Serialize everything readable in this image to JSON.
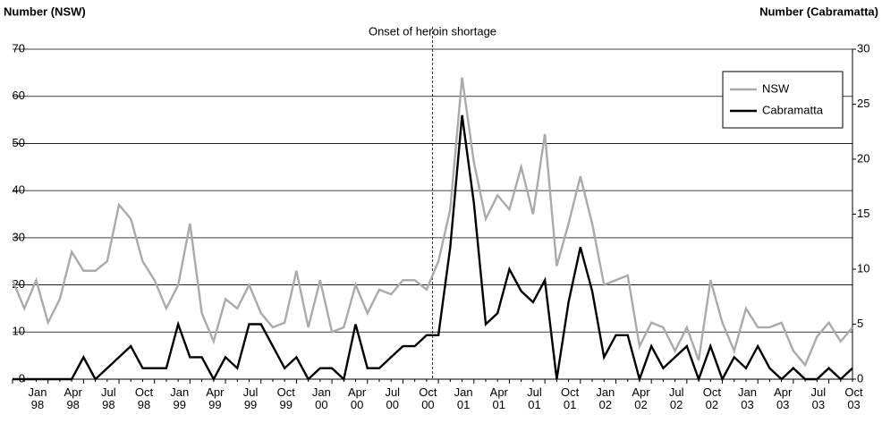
{
  "chart_data": {
    "type": "line",
    "y_label": "Number (NSW)",
    "y2_label": "Number (Cabramatta)",
    "annotation": "Onset of heroin shortage",
    "categories": [
      "Jan 98",
      null,
      null,
      "Apr 98",
      null,
      null,
      "Jul 98",
      null,
      null,
      "Oct 98",
      null,
      null,
      "Jan 99",
      null,
      null,
      "Apr 99",
      null,
      null,
      "Jul 99",
      null,
      null,
      "Oct 99",
      null,
      null,
      "Jan 00",
      null,
      null,
      "Apr 00",
      null,
      null,
      "Jul 00",
      null,
      null,
      "Oct 00",
      null,
      null,
      "Jan 01",
      null,
      null,
      "Apr 01",
      null,
      null,
      "Jul 01",
      null,
      null,
      "Oct 01",
      null,
      null,
      "Jan 02",
      null,
      null,
      "Apr 02",
      null,
      null,
      "Jul 02",
      null,
      null,
      "Oct 02",
      null,
      null,
      "Jan 03",
      null,
      null,
      "Apr 03",
      null,
      null,
      "Jul 03",
      null,
      null,
      "Oct 03",
      null,
      null
    ],
    "series": [
      {
        "name": "NSW",
        "color": "#aaaaaa",
        "values": [
          21,
          15,
          21,
          12,
          17,
          27,
          23,
          23,
          25,
          37,
          34,
          25,
          21,
          15,
          20,
          33,
          14,
          8,
          17,
          15,
          20,
          14,
          11,
          12,
          23,
          11,
          21,
          10,
          11,
          20,
          14,
          19,
          18,
          21,
          21,
          19,
          25,
          36,
          64,
          46,
          34,
          39,
          36,
          45,
          35,
          52,
          24,
          33,
          43,
          33,
          20,
          21,
          22,
          7,
          12,
          11,
          6,
          11,
          4,
          21,
          12,
          6,
          15,
          11,
          11,
          12,
          6,
          3,
          9,
          12,
          8,
          11
        ]
      },
      {
        "name": "Cabramatta",
        "color": "#000000",
        "axis": "y2",
        "values": [
          0,
          0,
          0,
          0,
          0,
          0,
          2,
          0,
          1,
          2,
          3,
          1,
          1,
          1,
          5,
          2,
          2,
          0,
          2,
          1,
          5,
          5,
          3,
          1,
          2,
          0,
          1,
          1,
          0,
          5,
          1,
          1,
          2,
          3,
          3,
          4,
          4,
          12,
          24,
          16,
          5,
          6,
          10,
          8,
          7,
          9,
          0,
          7,
          12,
          8,
          2,
          4,
          4,
          0,
          3,
          1,
          2,
          3,
          0,
          3,
          0,
          2,
          1,
          3,
          1,
          0,
          1,
          0,
          0,
          1,
          0,
          1
        ]
      }
    ],
    "ylim": [
      0,
      70
    ],
    "yticks": [
      0,
      10,
      20,
      30,
      40,
      50,
      60,
      70
    ],
    "y2lim": [
      0,
      30
    ],
    "y2ticks": [
      0,
      5,
      10,
      15,
      20,
      25,
      30
    ],
    "grid": true,
    "legend": "top-right"
  }
}
